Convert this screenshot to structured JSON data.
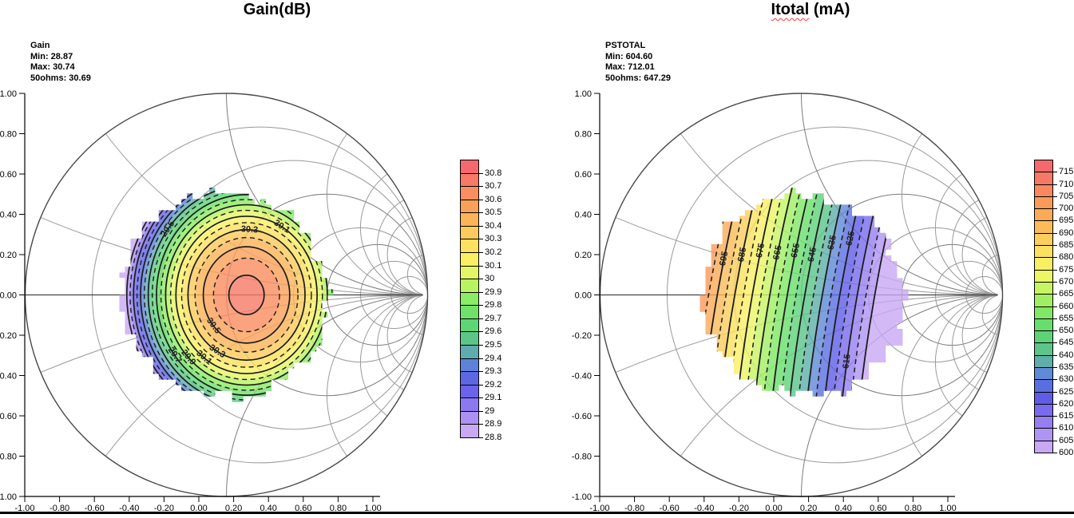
{
  "window": {
    "background": "#ffffff",
    "bottom_edge_color": "#000000"
  },
  "charts": [
    {
      "title_main": "Gain(dB)",
      "title_suffix": "",
      "stats": [
        "Gain",
        "Min: 28.87",
        "Max: 30.74",
        "50ohms: 30.69"
      ],
      "x_tick_labels": [
        "-1.00",
        "-0.80",
        "-0.60",
        "-0.40",
        "-0.20",
        "0.00",
        "0.20",
        "0.40",
        "0.60",
        "0.80",
        "1.00"
      ],
      "y_tick_labels": [
        "1.00",
        "0.80",
        "0.60",
        "0.40",
        "0.20",
        "0.00",
        "-0.20",
        "-0.40",
        "-0.60",
        "-0.80",
        "-1.00"
      ],
      "colorbar_labels": [
        "30.8",
        "30.7",
        "30.6",
        "30.5",
        "30.4",
        "30.3",
        "30.2",
        "30.1",
        "30",
        "29.9",
        "29.8",
        "29.7",
        "29.6",
        "29.5",
        "29.4",
        "29.3",
        "29.2",
        "29.1",
        "29",
        "28.9",
        "28.8"
      ]
    },
    {
      "title_main": "Itotal",
      "title_suffix": " (mA)",
      "stats": [
        "PSTOTAL",
        "Min: 604.60",
        "Max: 712.01",
        "50ohms: 647.29"
      ],
      "x_tick_labels": [
        "-1.00",
        "-0.80",
        "-0.60",
        "-0.40",
        "-0.20",
        "0.00",
        "0.20",
        "0.40",
        "0.60",
        "0.80",
        "1.00"
      ],
      "y_tick_labels": [
        "1.00",
        "0.80",
        "0.60",
        "0.40",
        "0.20",
        "0.00",
        "-0.20",
        "-0.40",
        "-0.60",
        "-0.80",
        "-1.00"
      ],
      "colorbar_labels": [
        "715",
        "710",
        "705",
        "700",
        "695",
        "690",
        "685",
        "680",
        "675",
        "670",
        "665",
        "660",
        "655",
        "650",
        "645",
        "640",
        "635",
        "630",
        "625",
        "620",
        "615",
        "610",
        "605",
        "600"
      ]
    }
  ],
  "chart_data": [
    {
      "type": "contour",
      "title": "Gain(dB)",
      "variable": "Gain",
      "units": "dB",
      "min": 28.87,
      "max": 30.74,
      "value_at_50ohms": 30.69,
      "xlim": [
        -1,
        1
      ],
      "ylim": [
        -1,
        1
      ],
      "tick_step": 0.2,
      "colorbar_min": 28.8,
      "colorbar_max": 30.8,
      "colorbar_step": 0.1,
      "contour_step": 0.1,
      "solid_levels": [
        28.9,
        29.1,
        29.3,
        29.5,
        29.7,
        29.9,
        30.1,
        30.3,
        30.5,
        30.7
      ],
      "dashed_levels": [
        29.0,
        29.2,
        29.4,
        29.6,
        29.8,
        30.0,
        30.2,
        30.4,
        30.6
      ],
      "contour_labels": [
        {
          "value": "30.3",
          "angle_deg": 87
        },
        {
          "value": "30.1",
          "angle_deg": 60
        },
        {
          "value": "29.5",
          "angle_deg": 143
        },
        {
          "value": "30.5",
          "angle_deg": 220
        },
        {
          "value": "30.3",
          "angle_deg": 240
        },
        {
          "value": "30.1",
          "angle_deg": 233
        },
        {
          "value": "29.9",
          "angle_deg": 224
        },
        {
          "value": "29.7",
          "angle_deg": 217
        }
      ],
      "render_model": {
        "kind": "rings",
        "peak": 30.74,
        "peak_at": [
          0.1,
          0.0
        ],
        "falloff_x": 5.2,
        "falloff_y": 4.2,
        "region_center": [
          -0.01,
          0.0
        ],
        "region_radius": 0.51,
        "band_lo": 28.8,
        "band_hi": 30.7
      }
    },
    {
      "type": "contour",
      "title": "Itotal (mA)",
      "variable": "PSTOTAL",
      "units": "mA",
      "min": 604.6,
      "max": 712.01,
      "value_at_50ohms": 647.29,
      "xlim": [
        -1,
        1
      ],
      "ylim": [
        -1,
        1
      ],
      "tick_step": 0.2,
      "colorbar_min": 600,
      "colorbar_max": 715,
      "colorbar_step": 5,
      "contour_step": 5,
      "solid_levels": [
        605,
        615,
        625,
        635,
        645,
        655,
        665,
        675,
        685,
        695
      ],
      "dashed_levels": [
        610,
        620,
        630,
        640,
        650,
        660,
        670,
        680,
        690,
        700
      ],
      "contour_labels": [
        {
          "value": "695",
          "y": 0.18
        },
        {
          "value": "685",
          "y": 0.2
        },
        {
          "value": "675",
          "y": 0.22
        },
        {
          "value": "665",
          "y": 0.21
        },
        {
          "value": "655",
          "y": 0.22
        },
        {
          "value": "645",
          "y": 0.2
        },
        {
          "value": "635",
          "y": 0.26
        },
        {
          "value": "625",
          "y": 0.28
        },
        {
          "value": "615",
          "y": -0.33
        }
      ],
      "render_model": {
        "kind": "tilted_lines",
        "center_value": 647,
        "dv_dx": -115,
        "tilt": 0.176,
        "curve": 0.06,
        "region_center": [
          0.01,
          0.0
        ],
        "region_radius": 0.5,
        "band_lo": 600,
        "band_hi": 710
      }
    }
  ],
  "palette_stops": [
    {
      "t": 0.0,
      "c": "#C9A8F4"
    },
    {
      "t": 0.06,
      "c": "#A78CF2"
    },
    {
      "t": 0.12,
      "c": "#7F6FEE"
    },
    {
      "t": 0.17,
      "c": "#5F5BE9"
    },
    {
      "t": 0.22,
      "c": "#5A6FE0"
    },
    {
      "t": 0.27,
      "c": "#618FD6"
    },
    {
      "t": 0.31,
      "c": "#5EB4A2"
    },
    {
      "t": 0.36,
      "c": "#5ACA82"
    },
    {
      "t": 0.42,
      "c": "#60DC6E"
    },
    {
      "t": 0.5,
      "c": "#8CEC63"
    },
    {
      "t": 0.56,
      "c": "#C2F461"
    },
    {
      "t": 0.62,
      "c": "#F6F767"
    },
    {
      "t": 0.68,
      "c": "#FCE861"
    },
    {
      "t": 0.74,
      "c": "#FCCF5C"
    },
    {
      "t": 0.8,
      "c": "#FBB457"
    },
    {
      "t": 0.87,
      "c": "#FA9A59"
    },
    {
      "t": 0.93,
      "c": "#F88163"
    },
    {
      "t": 1.0,
      "c": "#F4696E"
    }
  ],
  "smith_grid": {
    "resistance_circles": [
      0.2,
      0.5,
      1,
      2,
      3,
      5,
      10
    ],
    "reactance_arcs": [
      0.2,
      0.5,
      1,
      2,
      3,
      4,
      5,
      10
    ]
  }
}
